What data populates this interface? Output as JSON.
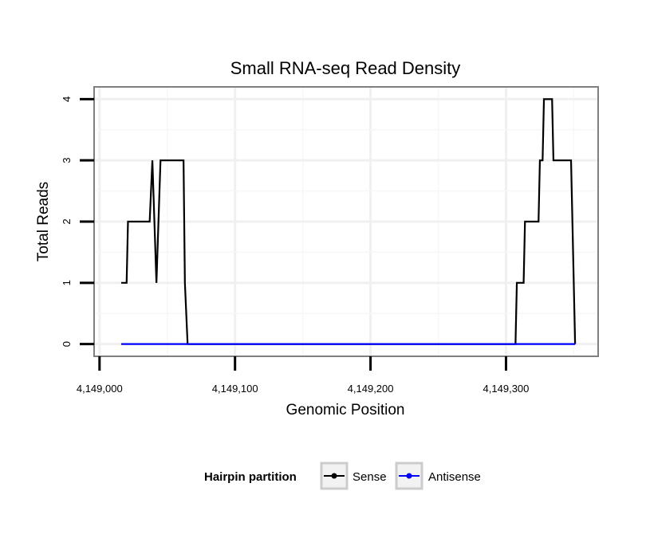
{
  "chart_data": {
    "type": "line",
    "title": "Small RNA-seq Read Density",
    "xlabel": "Genomic Position",
    "ylabel": "Total Reads",
    "xlim": [
      4148996,
      4149368
    ],
    "ylim": [
      -0.2,
      4.2
    ],
    "x_ticks": [
      4149000,
      4149100,
      4149200,
      4149300
    ],
    "x_tick_labels": [
      "4,149,000",
      "4,149,100",
      "4,149,200",
      "4,149,300"
    ],
    "y_ticks": [
      0,
      1,
      2,
      3,
      4
    ],
    "y_tick_labels": [
      "0",
      "1",
      "2",
      "3",
      "4"
    ],
    "grid": true,
    "legend": {
      "title": "Hairpin partition",
      "position": "bottom",
      "entries": [
        {
          "name": "Sense",
          "color": "#000000"
        },
        {
          "name": "Antisense",
          "color": "#0000ff"
        }
      ]
    },
    "series": [
      {
        "name": "Sense",
        "color": "#000000",
        "x": [
          4149016,
          4149020,
          4149021,
          4149037,
          4149039,
          4149042,
          4149045,
          4149062,
          4149063,
          4149065,
          4149307,
          4149308,
          4149313,
          4149314,
          4149324,
          4149325,
          4149327,
          4149328,
          4149334,
          4149335,
          4149348,
          4149349,
          4149351
        ],
        "y": [
          1,
          1,
          2,
          2,
          3,
          1,
          3,
          3,
          1,
          0,
          0,
          1,
          1,
          2,
          2,
          3,
          3,
          4,
          4,
          3,
          3,
          2,
          0
        ]
      },
      {
        "name": "Antisense",
        "color": "#0000ff",
        "x": [
          4149016,
          4149351
        ],
        "y": [
          0,
          0
        ]
      }
    ]
  }
}
